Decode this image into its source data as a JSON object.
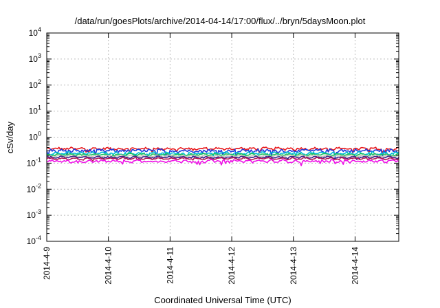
{
  "chart_data": {
    "type": "line",
    "title": "/data/run/goesPlots/archive/2014-04-14/17:00/flux/../bryn/5daysMoon.plot",
    "xlabel": "Coordinated Universal Time (UTC)",
    "ylabel": "cSv/day",
    "yscale": "log",
    "ylim": [
      0.0001,
      10000
    ],
    "y_ticks": [
      {
        "value": 0.0001,
        "base": "10",
        "exp": "-4"
      },
      {
        "value": 0.001,
        "base": "10",
        "exp": "-3"
      },
      {
        "value": 0.01,
        "base": "10",
        "exp": "-2"
      },
      {
        "value": 0.1,
        "base": "10",
        "exp": "-1"
      },
      {
        "value": 1,
        "base": "10",
        "exp": "0"
      },
      {
        "value": 10,
        "base": "10",
        "exp": "1"
      },
      {
        "value": 100,
        "base": "10",
        "exp": "2"
      },
      {
        "value": 1000,
        "base": "10",
        "exp": "3"
      },
      {
        "value": 10000,
        "base": "10",
        "exp": "4"
      }
    ],
    "xlim": [
      "2014-04-09T00:00",
      "2014-04-14T17:00"
    ],
    "x_ticks": [
      "2014-4-9",
      "2014-4-10",
      "2014-4-11",
      "2014-4-12",
      "2014-4-13",
      "2014-4-14"
    ],
    "grid": true,
    "legend": "none",
    "series": [
      {
        "color": "#e8191c",
        "approx_level": 0.36,
        "noise": 0.1
      },
      {
        "color": "#1f3bdc",
        "approx_level": 0.3,
        "noise": 0.14
      },
      {
        "color": "#00bcd8",
        "approx_level": 0.24,
        "noise": 0.09
      },
      {
        "color": "#16c35a",
        "approx_level": 0.215,
        "noise": 0.05
      },
      {
        "color": "#c8c7b8",
        "approx_level": 0.19,
        "noise": 0.05
      },
      {
        "color": "#3a1f8a",
        "approx_level": 0.17,
        "noise": 0.05
      },
      {
        "color": "#b21b55",
        "approx_level": 0.15,
        "noise": 0.05
      },
      {
        "color": "#ee10e6",
        "approx_level": 0.12,
        "noise": 0.1
      }
    ]
  }
}
